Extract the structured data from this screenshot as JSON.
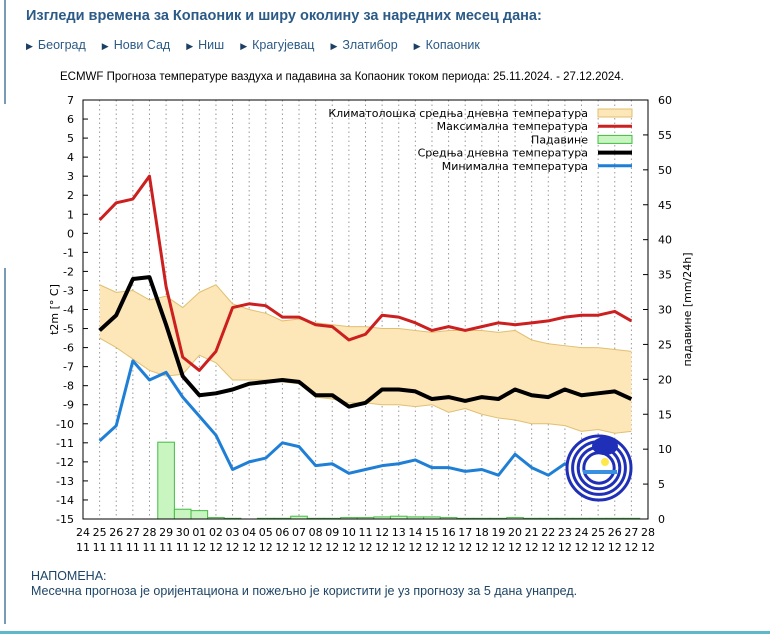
{
  "header": {
    "title": "Изгледи времена за Копаоник и ширу околину за наредних месец дана:",
    "nav": [
      "Београд",
      "Нови Сад",
      "Ниш",
      "Крагујевац",
      "Златибор",
      "Копаоник"
    ]
  },
  "note": {
    "heading": "НАПОМЕНА:",
    "text": "Месечна прогноза је оријентациона и пожељно је користити је уз прогнозу за 5 дана унапред."
  },
  "logo_text": "RHMZ Srbije",
  "chart_data": {
    "type": "line",
    "title": "ECMWF Прогноза температуре ваздуха и падавина за Копаоник током периода: 25.11.2024. - 27.12.2024.",
    "ylabel": "t2m [° C]",
    "y2label": "падавине [mm/24h]",
    "ylim": [
      -15,
      7
    ],
    "y2lim": [
      0,
      60
    ],
    "yticks": [
      7,
      6,
      5,
      4,
      3,
      2,
      1,
      0,
      -1,
      -2,
      -3,
      -4,
      -5,
      -6,
      -7,
      -8,
      -9,
      -10,
      -11,
      -12,
      -13,
      -14,
      -15
    ],
    "y2ticks": [
      60,
      55,
      50,
      45,
      40,
      35,
      30,
      25,
      20,
      15,
      10,
      5,
      0
    ],
    "xtick_days": [
      "24",
      "25",
      "26",
      "27",
      "28",
      "29",
      "30",
      "01",
      "02",
      "03",
      "04",
      "05",
      "06",
      "07",
      "08",
      "09",
      "10",
      "11",
      "12",
      "13",
      "14",
      "15",
      "16",
      "17",
      "18",
      "19",
      "20",
      "21",
      "22",
      "23",
      "24",
      "25",
      "26",
      "27",
      "28"
    ],
    "xtick_months": [
      "11",
      "11",
      "11",
      "11",
      "11",
      "11",
      "11",
      "12",
      "12",
      "12",
      "12",
      "12",
      "12",
      "12",
      "12",
      "12",
      "12",
      "12",
      "12",
      "12",
      "12",
      "12",
      "12",
      "12",
      "12",
      "12",
      "12",
      "12",
      "12",
      "12",
      "12",
      "12",
      "12",
      "12",
      "12"
    ],
    "grid": "vertical dotted",
    "legend_position": "top-right",
    "x_start_index": 1,
    "series": [
      {
        "name": "Климатолошка средња дневна температура",
        "kind": "band",
        "color": "#fde6b8",
        "edge": "#e0c070",
        "upper": [
          -2.7,
          -3.1,
          -3.0,
          -3.5,
          -3.3,
          -3.9,
          -3.1,
          -2.7,
          -3.7,
          -4.0,
          -4.2,
          -4.6,
          -4.5,
          -4.7,
          -4.8,
          -4.9,
          -4.9,
          -5.0,
          -5.0,
          -5.1,
          -5.2,
          -5.1,
          -5.1,
          -5.1,
          -5.2,
          -5.1,
          -5.6,
          -5.8,
          -5.9,
          -6.0,
          -6.0,
          -6.1,
          -6.2
        ],
        "lower": [
          -5.5,
          -6.0,
          -6.6,
          -7.2,
          -7.5,
          -7.4,
          -6.4,
          -6.8,
          -7.7,
          -7.7,
          -7.7,
          -7.8,
          -7.9,
          -8.6,
          -8.7,
          -8.9,
          -8.9,
          -9.0,
          -9.0,
          -9.1,
          -9.0,
          -9.4,
          -9.2,
          -9.5,
          -9.7,
          -9.8,
          -10.0,
          -10.0,
          -10.1,
          -10.4,
          -10.3,
          -10.5,
          -10.4
        ]
      },
      {
        "name": "Максимална температура",
        "kind": "line",
        "color": "#cc1f1f",
        "values": [
          0.7,
          1.6,
          1.8,
          3.0,
          -2.8,
          -6.5,
          -7.2,
          -6.2,
          -3.9,
          -3.7,
          -3.8,
          -4.4,
          -4.4,
          -4.8,
          -4.9,
          -5.6,
          -5.3,
          -4.3,
          -4.4,
          -4.7,
          -5.1,
          -4.9,
          -5.1,
          -4.9,
          -4.7,
          -4.8,
          -4.7,
          -4.6,
          -4.4,
          -4.3,
          -4.3,
          -4.1,
          -4.6
        ]
      },
      {
        "name": "Падавине",
        "kind": "bar",
        "color": "#c8f5c0",
        "edge": "#44bb44",
        "values": [
          0,
          0,
          0,
          0,
          11,
          1.4,
          1.2,
          0.2,
          0.1,
          0,
          0.1,
          0.1,
          0.4,
          0.1,
          0.1,
          0.2,
          0.2,
          0.3,
          0.4,
          0.3,
          0.3,
          0.2,
          0.1,
          0.1,
          0.1,
          0.2,
          0.1,
          0.1,
          0.1,
          0.1,
          0.1,
          0.1,
          0.1
        ]
      },
      {
        "name": "Средња дневна температура",
        "kind": "line",
        "color": "#000000",
        "values": [
          -5.1,
          -4.3,
          -2.4,
          -2.3,
          -4.8,
          -7.5,
          -8.5,
          -8.4,
          -8.2,
          -7.9,
          -7.8,
          -7.7,
          -7.8,
          -8.5,
          -8.5,
          -9.1,
          -8.9,
          -8.2,
          -8.2,
          -8.3,
          -8.7,
          -8.6,
          -8.8,
          -8.6,
          -8.7,
          -8.2,
          -8.5,
          -8.6,
          -8.2,
          -8.5,
          -8.4,
          -8.3,
          -8.7
        ]
      },
      {
        "name": "Минимална температура",
        "kind": "line",
        "color": "#1f7fd6",
        "values": [
          -10.9,
          -10.1,
          -6.7,
          -7.7,
          -7.3,
          -8.6,
          -9.6,
          -10.6,
          -12.4,
          -12.0,
          -11.8,
          -11.0,
          -11.2,
          -12.2,
          -12.1,
          -12.6,
          -12.4,
          -12.2,
          -12.1,
          -11.9,
          -12.3,
          -12.3,
          -12.5,
          -12.4,
          -12.7,
          -11.6,
          -12.3,
          -12.7,
          -12.1,
          -12.4,
          -12.3,
          -12.2,
          -12.3
        ]
      }
    ]
  }
}
